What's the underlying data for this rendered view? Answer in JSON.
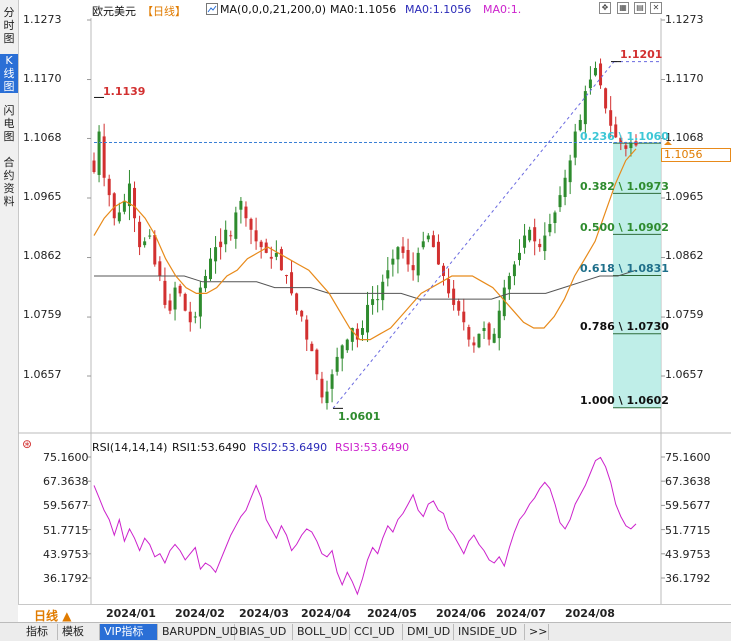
{
  "sidebar": {
    "tabs": [
      {
        "label": "分时图"
      },
      {
        "label": "K线图"
      },
      {
        "label": "闪电图"
      },
      {
        "label": "合约资料"
      }
    ]
  },
  "header": {
    "symbol": "欧元美元",
    "period": "【日线】",
    "ma_params": "MA(0,0,0,21,200,0)",
    "ma0a": "MA0:1.1056",
    "ma0b": "MA0:1.1056",
    "ma0c": "MA0:1.",
    "ma_icon": "chart-line-icon",
    "controls": [
      "expand-icon",
      "grid-icon",
      "dock-icon",
      "close-icon"
    ]
  },
  "price_axis": {
    "ticks": [
      "1.1273",
      "1.1170",
      "1.1068",
      "1.0965",
      "1.0862",
      "1.0759",
      "1.0657"
    ]
  },
  "price_annotations": {
    "high": "1.1139",
    "peak": "1.1201",
    "low": "1.0601",
    "current": "1.1056"
  },
  "fibonacci": [
    {
      "ratio": "0.236",
      "price": "1.1060"
    },
    {
      "ratio": "0.382",
      "price": "1.0973"
    },
    {
      "ratio": "0.500",
      "price": "1.0902"
    },
    {
      "ratio": "0.618",
      "price": "1.0831"
    },
    {
      "ratio": "0.786",
      "price": "1.0730"
    },
    {
      "ratio": "1.000",
      "price": "1.0602"
    }
  ],
  "rsi": {
    "title": "RSI(14,14,14)",
    "rsi1": "RSI1:53.6490",
    "rsi2": "RSI2:53.6490",
    "rsi3": "RSI3:53.6490",
    "ticks": [
      "75.1600",
      "67.3638",
      "59.5677",
      "51.7715",
      "43.9753",
      "36.1792"
    ]
  },
  "time_axis": {
    "period_label": "日线",
    "labels": [
      "2024/01",
      "2024/02",
      "2024/03",
      "2024/04",
      "2024/05",
      "2024/06",
      "2024/07",
      "2024/08"
    ]
  },
  "bottom_tabs": [
    "指标",
    "模板",
    "VIP指标",
    "BARUPDN_UD",
    "BIAS_UD",
    "BOLL_UD",
    "CCI_UD",
    "DMI_UD",
    "INSIDE_UD",
    ">>"
  ],
  "colors": {
    "up": "#2e8b2e",
    "down": "#d23030",
    "ma21": "#e88a1a",
    "ma200": "#555555",
    "rsi": "#cc22cc",
    "fib_fill": "#b4ebe4",
    "accent": "#2a6fd6"
  },
  "chart_data": {
    "type": "candlestick",
    "symbol": "欧元美元",
    "ylim": [
      1.062,
      1.127
    ],
    "x_labels": [
      "2024/01",
      "2024/02",
      "2024/03",
      "2024/04",
      "2024/05",
      "2024/06",
      "2024/07",
      "2024/08"
    ],
    "close_path": [
      1.101,
      1.108,
      1.1,
      1.097,
      1.093,
      1.094,
      1.096,
      1.099,
      1.093,
      1.088,
      1.089,
      1.09,
      1.085,
      1.083,
      1.078,
      1.077,
      1.081,
      1.08,
      1.077,
      1.075,
      1.076,
      1.081,
      1.083,
      1.086,
      1.088,
      1.088,
      1.091,
      1.09,
      1.094,
      1.096,
      1.093,
      1.091,
      1.089,
      1.088,
      1.087,
      1.086,
      1.087,
      1.084,
      1.083,
      1.08,
      1.077,
      1.076,
      1.072,
      1.07,
      1.066,
      1.062,
      1.063,
      1.066,
      1.069,
      1.071,
      1.072,
      1.074,
      1.072,
      1.074,
      1.078,
      1.079,
      1.079,
      1.082,
      1.084,
      1.086,
      1.088,
      1.087,
      1.085,
      1.084,
      1.087,
      1.089,
      1.09,
      1.088,
      1.085,
      1.083,
      1.08,
      1.078,
      1.077,
      1.075,
      1.072,
      1.071,
      1.073,
      1.074,
      1.072,
      1.073,
      1.077,
      1.081,
      1.083,
      1.085,
      1.087,
      1.09,
      1.091,
      1.089,
      1.088,
      1.09,
      1.092,
      1.094,
      1.097,
      1.1,
      1.103,
      1.108,
      1.11,
      1.115,
      1.117,
      1.119,
      1.116,
      1.112,
      1.109,
      1.107,
      1.106,
      1.105,
      1.106,
      1.1056
    ],
    "ma21_values": [
      1.09,
      1.093,
      1.095,
      1.096,
      1.095,
      1.093,
      1.09,
      1.086,
      1.083,
      1.081,
      1.08,
      1.08,
      1.081,
      1.083,
      1.084,
      1.086,
      1.087,
      1.088,
      1.087,
      1.086,
      1.085,
      1.084,
      1.082,
      1.08,
      1.077,
      1.074,
      1.072,
      1.072,
      1.073,
      1.074,
      1.076,
      1.078,
      1.08,
      1.081,
      1.082,
      1.083,
      1.083,
      1.083,
      1.082,
      1.081,
      1.079,
      1.077,
      1.075,
      1.074,
      1.074,
      1.076,
      1.079,
      1.083,
      1.086,
      1.089,
      1.094,
      1.099,
      1.103,
      1.105
    ],
    "ma200_values": [
      1.083,
      1.083,
      1.083,
      1.083,
      1.083,
      1.083,
      1.082,
      1.082,
      1.082,
      1.082,
      1.081,
      1.081,
      1.081,
      1.08,
      1.08,
      1.08,
      1.08,
      1.08,
      1.079,
      1.079,
      1.079,
      1.079,
      1.079,
      1.08,
      1.08,
      1.08,
      1.081,
      1.082,
      1.083,
      1.083,
      1.084
    ],
    "rsi_values": [
      66,
      62,
      58,
      55,
      50,
      55,
      48,
      52,
      49,
      45,
      49,
      47,
      43,
      44,
      41,
      45,
      47,
      45,
      42,
      44,
      46,
      39,
      41,
      40,
      38,
      42,
      46,
      50,
      53,
      56,
      58,
      62,
      66,
      62,
      55,
      52,
      49,
      53,
      50,
      45,
      47,
      50,
      52,
      51,
      48,
      44,
      43,
      45,
      38,
      34,
      38,
      35,
      31,
      36,
      42,
      46,
      44,
      49,
      53,
      51,
      55,
      57,
      60,
      63,
      58,
      56,
      60,
      61,
      58,
      57,
      52,
      50,
      47,
      44,
      48,
      50,
      47,
      45,
      42,
      41,
      43,
      40,
      46,
      51,
      55,
      57,
      60,
      62,
      65,
      67,
      65,
      60,
      54,
      52,
      55,
      60,
      63,
      66,
      70,
      74,
      75,
      72,
      67,
      60,
      56,
      53,
      52,
      53.6
    ]
  }
}
